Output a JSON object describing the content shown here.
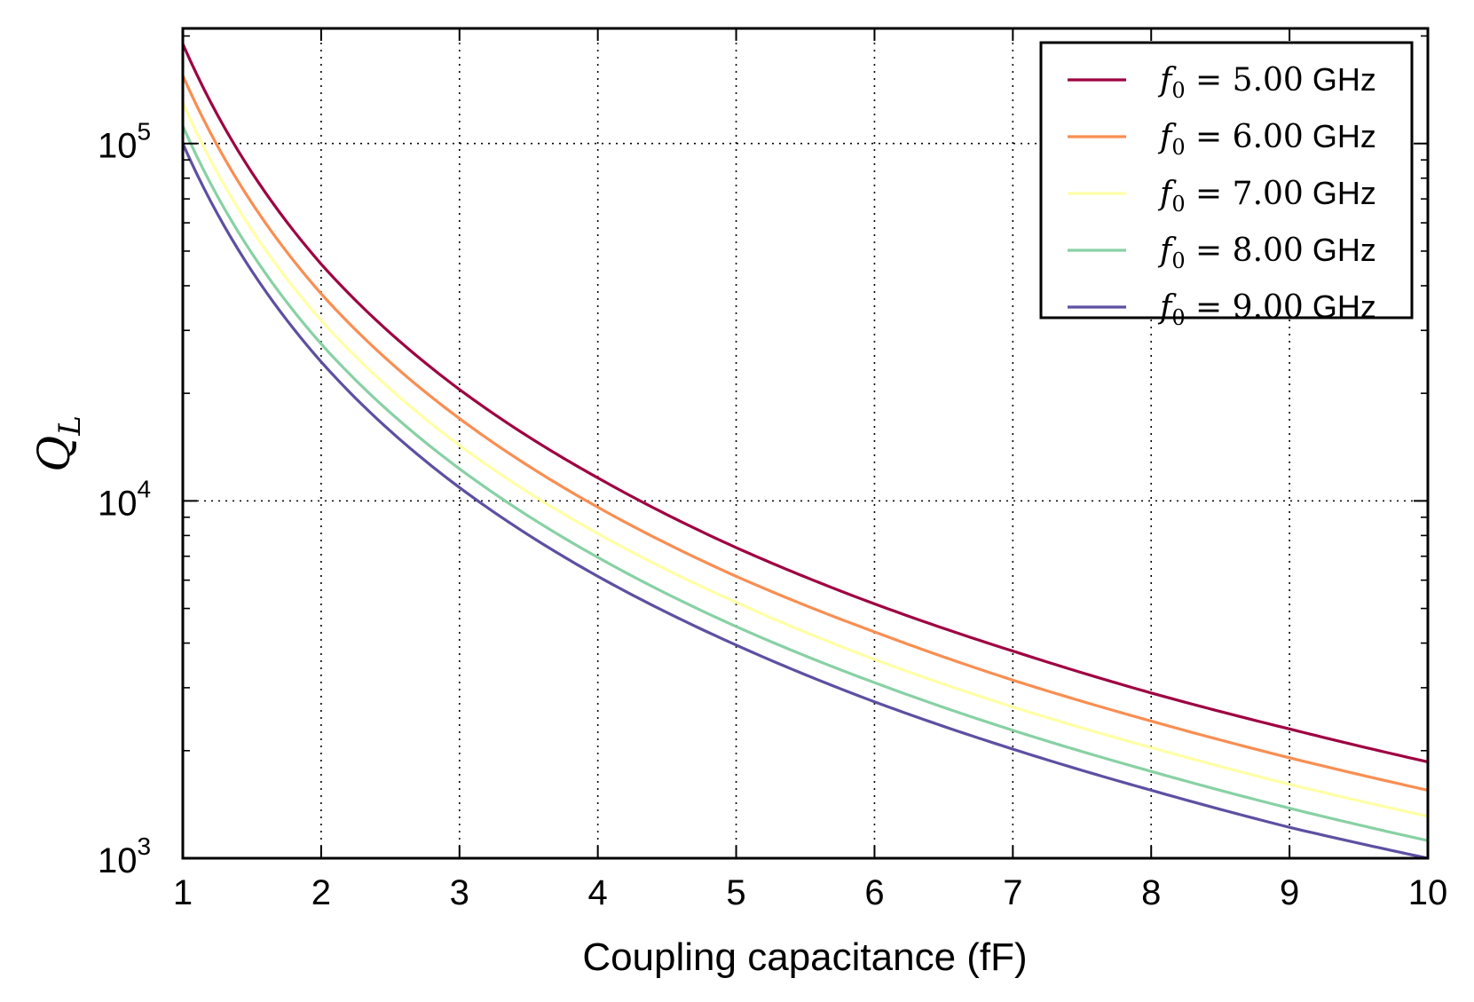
{
  "chart_data": {
    "type": "line",
    "title": "",
    "xlabel": "Coupling capacitance (fF)",
    "ylabel_symbol": "Q",
    "ylabel_subscript": "L",
    "xlim": [
      1,
      10
    ],
    "ylim": [
      1000,
      210000
    ],
    "yscale": "log",
    "grid": true,
    "grid_style": "dotted",
    "legend_position": "top-right",
    "x_ticks": [
      "1",
      "2",
      "3",
      "4",
      "5",
      "6",
      "7",
      "8",
      "9",
      "10"
    ],
    "y_ticks": [
      {
        "value": 1000,
        "base": "10",
        "exp": "3"
      },
      {
        "value": 10000,
        "base": "10",
        "exp": "4"
      },
      {
        "value": 100000,
        "base": "10",
        "exp": "5"
      }
    ],
    "x": [
      1,
      2,
      3,
      4,
      5,
      6,
      7,
      8,
      9,
      10
    ],
    "series": [
      {
        "name": "f",
        "name_sub": "0",
        "name_value": " = 5.00",
        "name_unit": " GHz",
        "color": "#9e0142",
        "values": [
          190000,
          46000,
          20500,
          11600,
          7400,
          5150,
          3800,
          2900,
          2300,
          1860
        ]
      },
      {
        "name": "f",
        "name_sub": "0",
        "name_value": " = 6.00",
        "name_unit": " GHz",
        "color": "#f98e52",
        "values": [
          155000,
          38000,
          17000,
          9600,
          6150,
          4300,
          3150,
          2420,
          1910,
          1550
        ]
      },
      {
        "name": "f",
        "name_sub": "0",
        "name_value": " = 7.00",
        "name_unit": " GHz",
        "color": "#ffffa6",
        "values": [
          130000,
          32000,
          14300,
          8100,
          5200,
          3600,
          2650,
          2040,
          1610,
          1310
        ]
      },
      {
        "name": "f",
        "name_sub": "0",
        "name_value": " = 8.00",
        "name_unit": " GHz",
        "color": "#88d1a4",
        "values": [
          112000,
          27500,
          12300,
          6950,
          4450,
          3100,
          2280,
          1750,
          1380,
          1120
        ]
      },
      {
        "name": "f",
        "name_sub": "0",
        "name_value": " = 9.00",
        "name_unit": " GHz",
        "color": "#5e4fa2",
        "values": [
          100000,
          24500,
          10900,
          6150,
          3950,
          2740,
          2020,
          1550,
          1220,
          1000
        ]
      }
    ]
  }
}
